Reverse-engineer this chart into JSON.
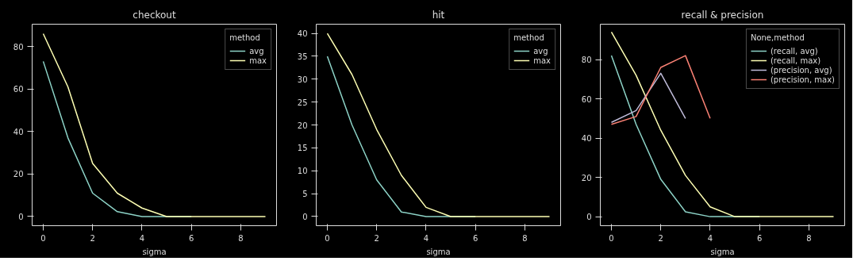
{
  "chart_data": [
    {
      "type": "line",
      "title": "checkout",
      "xlabel": "sigma",
      "x": [
        0,
        1,
        2,
        3,
        4,
        5,
        6,
        7,
        8,
        9
      ],
      "xlim": [
        -0.45,
        9.45
      ],
      "xticks": [
        0,
        2,
        4,
        6,
        8
      ],
      "ylim": [
        -4.3,
        90.5
      ],
      "yticks": [
        0,
        20,
        40,
        60,
        80
      ],
      "legend": "top right",
      "legend_title": "method",
      "grid": false,
      "series": [
        {
          "name": "avg",
          "color": "#8dd3c7",
          "values": [
            73,
            37,
            11,
            2.3,
            0,
            0,
            0,
            null,
            null,
            null
          ]
        },
        {
          "name": "max",
          "color": "#feffb3",
          "values": [
            86,
            61,
            25,
            11,
            4,
            0,
            0,
            0,
            0,
            0
          ]
        }
      ]
    },
    {
      "type": "line",
      "title": "hit",
      "xlabel": "sigma",
      "x": [
        0,
        1,
        2,
        3,
        4,
        5,
        6,
        7,
        8,
        9
      ],
      "xlim": [
        -0.45,
        9.45
      ],
      "xticks": [
        0,
        2,
        4,
        6,
        8
      ],
      "ylim": [
        -2,
        42
      ],
      "yticks": [
        0,
        5,
        10,
        15,
        20,
        25,
        30,
        35,
        40
      ],
      "legend": "top right",
      "legend_title": "method",
      "grid": false,
      "series": [
        {
          "name": "avg",
          "color": "#8dd3c7",
          "values": [
            35,
            20,
            8,
            1,
            0,
            0,
            0,
            null,
            null,
            null
          ]
        },
        {
          "name": "max",
          "color": "#feffb3",
          "values": [
            40,
            31,
            19,
            9,
            2,
            0,
            0,
            0,
            0,
            0
          ]
        }
      ]
    },
    {
      "type": "line",
      "title": "recall & precision",
      "xlabel": "sigma",
      "x": [
        0,
        1,
        2,
        3,
        4,
        5,
        6,
        7,
        8,
        9
      ],
      "xlim": [
        -0.45,
        9.45
      ],
      "xticks": [
        0,
        2,
        4,
        6,
        8
      ],
      "ylim": [
        -4.6,
        98
      ],
      "yticks": [
        0,
        20,
        40,
        60,
        80
      ],
      "legend": "top right",
      "legend_title": "None,method",
      "grid": false,
      "series": [
        {
          "name": "(recall, avg)",
          "color": "#8dd3c7",
          "values": [
            82,
            47,
            19,
            2.5,
            0,
            0,
            0,
            null,
            null,
            null
          ]
        },
        {
          "name": "(recall, max)",
          "color": "#feffb3",
          "values": [
            94,
            72,
            44,
            21,
            5,
            0,
            0,
            0,
            0,
            0
          ]
        },
        {
          "name": "(precision, avg)",
          "color": "#bfbbd9",
          "values": [
            48,
            54,
            73,
            50,
            null,
            null,
            null,
            null,
            null,
            null
          ]
        },
        {
          "name": "(precision, max)",
          "color": "#fa8174",
          "values": [
            47,
            51,
            76,
            82,
            50,
            null,
            null,
            null,
            null,
            null
          ]
        }
      ]
    }
  ]
}
